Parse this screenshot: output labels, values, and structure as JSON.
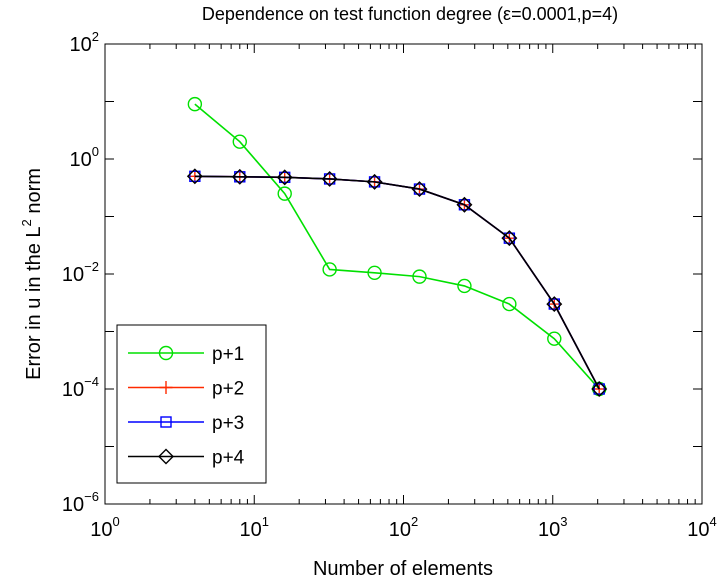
{
  "chart_data": {
    "type": "line",
    "title": "Dependence on test function degree (ε=0.0001,p=4)",
    "xlabel": "Number of elements",
    "ylabel_prefix": "Error in u in the L",
    "ylabel_sup": "2",
    "ylabel_suffix": " norm",
    "x_scale": "log",
    "y_scale": "log",
    "xlim": [
      1,
      10000
    ],
    "ylim": [
      1e-06,
      100
    ],
    "x_ticks": [
      {
        "base": "10",
        "exp": "0",
        "value": 1
      },
      {
        "base": "10",
        "exp": "1",
        "value": 10
      },
      {
        "base": "10",
        "exp": "2",
        "value": 100
      },
      {
        "base": "10",
        "exp": "3",
        "value": 1000
      },
      {
        "base": "10",
        "exp": "4",
        "value": 10000
      }
    ],
    "y_ticks": [
      {
        "base": "10",
        "exp": "−6",
        "value": 1e-06
      },
      {
        "base": "10",
        "exp": "−4",
        "value": 0.0001
      },
      {
        "base": "10",
        "exp": "−2",
        "value": 0.01
      },
      {
        "base": "10",
        "exp": "0",
        "value": 1
      },
      {
        "base": "10",
        "exp": "2",
        "value": 100
      }
    ],
    "grid": false,
    "legend_position": "bottom-left",
    "x": [
      4,
      8,
      16,
      32,
      64,
      128,
      256,
      512,
      1024,
      2048
    ],
    "series": [
      {
        "name": "p+1",
        "color": "#00e000",
        "marker": "circle",
        "values": [
          9.0,
          2.0,
          0.25,
          0.012,
          0.0105,
          0.009,
          0.0062,
          0.003,
          0.00075,
          0.0001
        ]
      },
      {
        "name": "p+2",
        "color": "#ff2a00",
        "marker": "plus",
        "values": [
          0.5,
          0.49,
          0.48,
          0.45,
          0.4,
          0.3,
          0.16,
          0.042,
          0.003,
          0.0001
        ]
      },
      {
        "name": "p+3",
        "color": "#0000ff",
        "marker": "square",
        "values": [
          0.5,
          0.49,
          0.48,
          0.45,
          0.4,
          0.3,
          0.16,
          0.042,
          0.003,
          0.0001
        ]
      },
      {
        "name": "p+4",
        "color": "#000000",
        "marker": "diamond",
        "values": [
          0.5,
          0.49,
          0.48,
          0.45,
          0.4,
          0.3,
          0.16,
          0.042,
          0.003,
          0.0001
        ]
      }
    ]
  }
}
